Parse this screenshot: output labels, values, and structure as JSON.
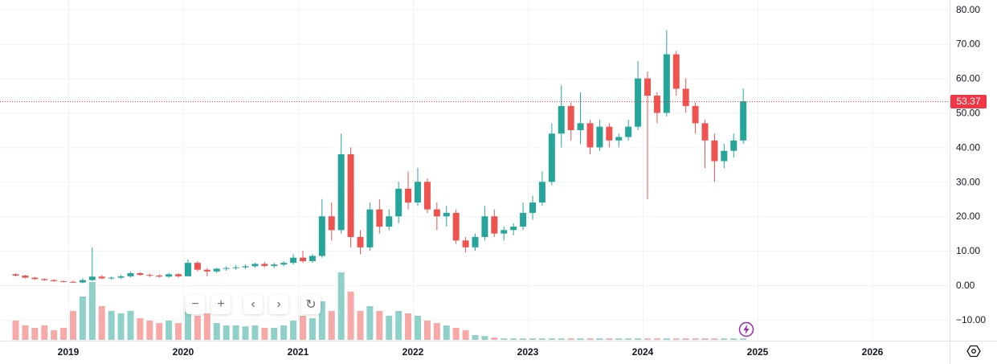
{
  "chart_data": {
    "type": "candlestick",
    "price_axis": {
      "ticks": [
        "80.00",
        "70.00",
        "60.00",
        "50.00",
        "40.00",
        "30.00",
        "20.00",
        "10.00",
        "0.00",
        "−10.00"
      ],
      "range": [
        -10,
        80
      ]
    },
    "time_axis": {
      "ticks": [
        "2019",
        "2020",
        "2021",
        "2022",
        "2023",
        "2024",
        "2025",
        "2026"
      ]
    },
    "last_price": "53.37",
    "colors": {
      "up": "#26a69a",
      "down": "#ef5350",
      "last_price": "#f23645",
      "up_volume": "#8fd1c9",
      "down_volume": "#f7a9a7"
    },
    "grid": true,
    "candles": [
      [
        "2018-07",
        3.2,
        3.5,
        2.5,
        2.8,
        40
      ],
      [
        "2018-08",
        2.8,
        3,
        2,
        2.2,
        30
      ],
      [
        "2018-09",
        2.2,
        2.4,
        1.6,
        1.8,
        25
      ],
      [
        "2018-10",
        1.8,
        2,
        1.3,
        1.5,
        30
      ],
      [
        "2018-11",
        1.5,
        1.7,
        1,
        1.2,
        20
      ],
      [
        "2018-12",
        1.2,
        1.4,
        0.8,
        1,
        25
      ],
      [
        "2019-01",
        1,
        1.3,
        0.6,
        0.8,
        60
      ],
      [
        "2019-02",
        0.8,
        2,
        0.6,
        1.5,
        90
      ],
      [
        "2019-03",
        1.5,
        11,
        1.2,
        2.5,
        120
      ],
      [
        "2019-04",
        2.5,
        3,
        1.8,
        2,
        70
      ],
      [
        "2019-05",
        2,
        2.6,
        1.6,
        2.2,
        60
      ],
      [
        "2019-06",
        2.2,
        3,
        1.8,
        2.6,
        55
      ],
      [
        "2019-07",
        2.6,
        4,
        2.3,
        3.5,
        60
      ],
      [
        "2019-08",
        3.5,
        3.8,
        2.8,
        3,
        45
      ],
      [
        "2019-09",
        3,
        3.4,
        2.4,
        2.8,
        40
      ],
      [
        "2019-10",
        2.8,
        3.2,
        2.2,
        2.5,
        35
      ],
      [
        "2019-11",
        2.5,
        3.6,
        2.2,
        3.2,
        40
      ],
      [
        "2019-12",
        3.2,
        3.5,
        2.2,
        2.6,
        35
      ],
      [
        "2020-01",
        2.6,
        7.5,
        2.5,
        6.5,
        60
      ],
      [
        "2020-02",
        6.5,
        7,
        4,
        4.5,
        50
      ],
      [
        "2020-03",
        4.5,
        5,
        2.5,
        4,
        55
      ],
      [
        "2020-04",
        4,
        5,
        3.5,
        4.8,
        35
      ],
      [
        "2020-05",
        4.8,
        5.5,
        4.2,
        5,
        30
      ],
      [
        "2020-06",
        5,
        5.8,
        4.5,
        5.2,
        30
      ],
      [
        "2020-07",
        5.2,
        6,
        4.8,
        5.5,
        28
      ],
      [
        "2020-08",
        5.5,
        6.5,
        5,
        6.2,
        30
      ],
      [
        "2020-09",
        6.2,
        6.8,
        5.2,
        5.6,
        25
      ],
      [
        "2020-10",
        5.6,
        6.5,
        5,
        6,
        25
      ],
      [
        "2020-11",
        6,
        7,
        5.5,
        6.5,
        30
      ],
      [
        "2020-12",
        6.5,
        9,
        6,
        8,
        40
      ],
      [
        "2021-01",
        8,
        10,
        6.5,
        7,
        50
      ],
      [
        "2021-02",
        7,
        9,
        6.5,
        8.5,
        45
      ],
      [
        "2021-03",
        8.5,
        25,
        8,
        20,
        80
      ],
      [
        "2021-04",
        20,
        24,
        13,
        16,
        60
      ],
      [
        "2021-05",
        16,
        44,
        15,
        38,
        140
      ],
      [
        "2021-06",
        38,
        40,
        11,
        14,
        100
      ],
      [
        "2021-07",
        14,
        16,
        9,
        11,
        60
      ],
      [
        "2021-08",
        11,
        24,
        10,
        22,
        70
      ],
      [
        "2021-09",
        22,
        25,
        15,
        17,
        60
      ],
      [
        "2021-10",
        17,
        22,
        16,
        20,
        50
      ],
      [
        "2021-11",
        20,
        30,
        18,
        28,
        60
      ],
      [
        "2021-12",
        28,
        33,
        22,
        24,
        55
      ],
      [
        "2022-01",
        24,
        34,
        23,
        30,
        50
      ],
      [
        "2022-02",
        30,
        31,
        21,
        22,
        40
      ],
      [
        "2022-03",
        22,
        24,
        16,
        20,
        35
      ],
      [
        "2022-04",
        20,
        23,
        17,
        21,
        30
      ],
      [
        "2022-05",
        21,
        22,
        12,
        13,
        25
      ],
      [
        "2022-06",
        13,
        14,
        9.5,
        11,
        20
      ],
      [
        "2022-07",
        11,
        15,
        10,
        14,
        10
      ],
      [
        "2022-08",
        14,
        23,
        13,
        20,
        8
      ],
      [
        "2022-09",
        20,
        22,
        14,
        15,
        5
      ],
      [
        "2022-10",
        15,
        17,
        13,
        16,
        3
      ],
      [
        "2022-11",
        16,
        18,
        14.5,
        17,
        3
      ],
      [
        "2022-12",
        17,
        24,
        16,
        21,
        3
      ],
      [
        "2023-01",
        21,
        26,
        19,
        24,
        3
      ],
      [
        "2023-02",
        24,
        33,
        23,
        30,
        3
      ],
      [
        "2023-03",
        30,
        47,
        29,
        44,
        3
      ],
      [
        "2023-04",
        44,
        58,
        40,
        52,
        3
      ],
      [
        "2023-05",
        52,
        53,
        42,
        45,
        3
      ],
      [
        "2023-06",
        45,
        56,
        41,
        47,
        3
      ],
      [
        "2023-07",
        47,
        48,
        38,
        40,
        3
      ],
      [
        "2023-08",
        40,
        48,
        39,
        46,
        3
      ],
      [
        "2023-09",
        46,
        47,
        40,
        42,
        3
      ],
      [
        "2023-10",
        42,
        44,
        40,
        43,
        3
      ],
      [
        "2023-11",
        43,
        48,
        42,
        46,
        3
      ],
      [
        "2023-12",
        46,
        65,
        45,
        60,
        3
      ],
      [
        "2024-01",
        60,
        62,
        25,
        55,
        3
      ],
      [
        "2024-02",
        55,
        56,
        47,
        50,
        3
      ],
      [
        "2024-03",
        50,
        74,
        49,
        67,
        3
      ],
      [
        "2024-04",
        67,
        68,
        55,
        57,
        3
      ],
      [
        "2024-05",
        57,
        60,
        50,
        52,
        3
      ],
      [
        "2024-06",
        52,
        53,
        44,
        47,
        3
      ],
      [
        "2024-07",
        47,
        48,
        34,
        42,
        3
      ],
      [
        "2024-08",
        42,
        44,
        30,
        36,
        3
      ],
      [
        "2024-09",
        36,
        41,
        34,
        39,
        3
      ],
      [
        "2024-10",
        39,
        44,
        37,
        42,
        3
      ],
      [
        "2024-11",
        42,
        57,
        41,
        53.37,
        3
      ]
    ]
  },
  "controls": {
    "zoom_out": "−",
    "zoom_in": "+",
    "scroll_left": "‹",
    "scroll_right": "›",
    "reset": "↻",
    "icons": [
      "minus-icon",
      "plus-icon",
      "chevron-left-icon",
      "chevron-right-icon",
      "reset-icon",
      "lightning-icon",
      "settings-icon"
    ]
  }
}
